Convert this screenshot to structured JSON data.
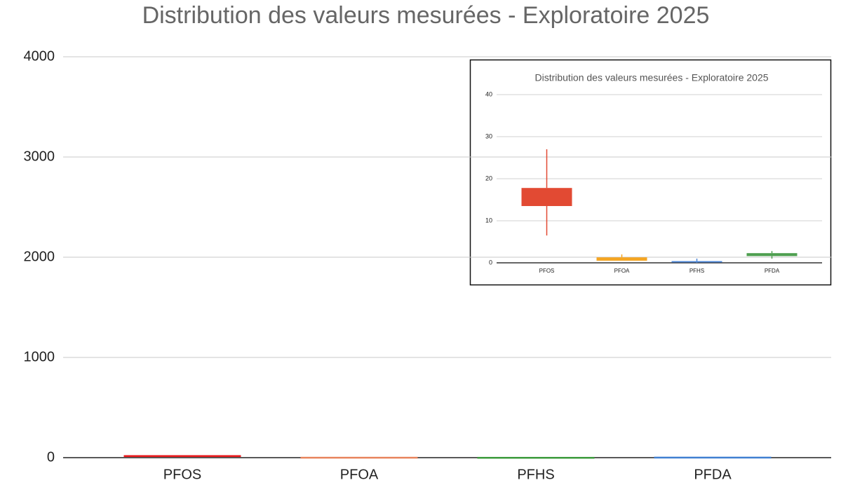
{
  "chart_data": [
    {
      "type": "box",
      "title": "Distribution des valeurs mesurées - Exploratoire 2025",
      "categories": [
        "PFOS",
        "PFOA",
        "PFHS",
        "PFDA"
      ],
      "colors": [
        "#e8191c",
        "#e8845c",
        "#3a9a3a",
        "#3f7fd1"
      ],
      "min": [
        6.5,
        0.5,
        0,
        1
      ],
      "q1": [
        13.5,
        0.5,
        0.1,
        1.6
      ],
      "q3": [
        17.8,
        1.3,
        0.4,
        2.3
      ],
      "max": [
        27,
        2,
        1,
        2.8
      ],
      "ylim": [
        0,
        4000
      ],
      "yticks": [
        0,
        1000,
        2000,
        3000,
        4000
      ],
      "grid": true
    },
    {
      "type": "box",
      "title": "Distribution des valeurs mesurées - Exploratoire 2025",
      "categories": [
        "PFOS",
        "PFOA",
        "PFHS",
        "PFDA"
      ],
      "colors": [
        "#e24a33",
        "#f5a623",
        "#4a86d9",
        "#4e9f50"
      ],
      "min": [
        6.5,
        0.5,
        0,
        1
      ],
      "q1": [
        13.5,
        0.5,
        0.1,
        1.6
      ],
      "q3": [
        17.8,
        1.3,
        0.4,
        2.3
      ],
      "max": [
        27,
        2,
        1,
        2.8
      ],
      "ylim": [
        0,
        40
      ],
      "yticks": [
        0,
        10,
        20,
        30,
        40
      ],
      "grid": true
    }
  ]
}
